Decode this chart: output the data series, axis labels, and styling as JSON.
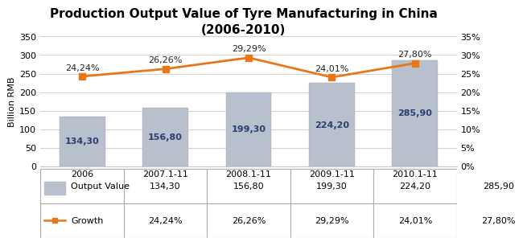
{
  "title_line1": "Production Output Value of Tyre Manufacturing in China",
  "title_line2": "(2006-2010)",
  "categories": [
    "2006",
    "2007.1-11",
    "2008.1-11",
    "2009.1-11",
    "2010.1-11"
  ],
  "output_values": [
    134.3,
    156.8,
    199.3,
    224.2,
    285.9
  ],
  "growth_values": [
    24.24,
    26.26,
    29.29,
    24.01,
    27.8
  ],
  "output_labels": [
    "134,30",
    "156,80",
    "199,30",
    "224,20",
    "285,90"
  ],
  "growth_labels": [
    "24,24%",
    "26,26%",
    "29,29%",
    "24,01%",
    "27,80%"
  ],
  "bar_color": "#B8C0CE",
  "line_color": "#E87817",
  "marker_color": "#E87817",
  "left_ylabel": "Billion RMB",
  "left_ylim": [
    0,
    350
  ],
  "left_yticks": [
    0,
    50,
    100,
    150,
    200,
    250,
    300,
    350
  ],
  "right_ylim": [
    0,
    35
  ],
  "right_yticks": [
    0,
    5,
    10,
    15,
    20,
    25,
    30,
    35
  ],
  "right_yticklabels": [
    "0%",
    "5%",
    "10%",
    "15%",
    "20%",
    "25%",
    "30%",
    "35%"
  ],
  "legend_output_label": "Output Value",
  "legend_growth_label": "Growth",
  "table_row1_label": "Output Value",
  "table_row2_label": "Growth",
  "table_row1_values": [
    "134,30",
    "156,80",
    "199,30",
    "224,20",
    "285,90"
  ],
  "table_row2_values": [
    "24,24%",
    "26,26%",
    "29,29%",
    "24,01%",
    "27,80%"
  ],
  "title_fontsize": 11,
  "axis_fontsize": 8,
  "bar_label_fontsize": 8,
  "growth_label_fontsize": 8,
  "table_fontsize": 8
}
